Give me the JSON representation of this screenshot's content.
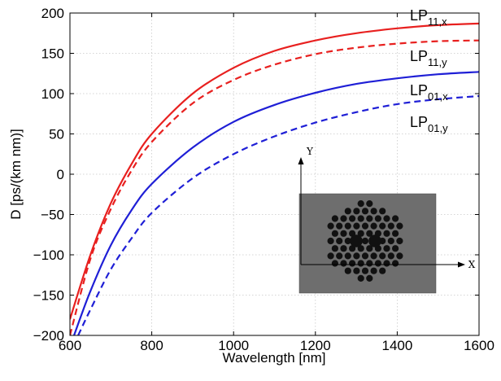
{
  "chart_data": {
    "type": "line",
    "title": "",
    "xlabel": "Wavelength [nm]",
    "ylabel": "D [ps/(km nm)]",
    "xlim": [
      600,
      1600
    ],
    "ylim": [
      -200,
      200
    ],
    "xticks": [
      "600",
      "800",
      "1000",
      "1200",
      "1400",
      "1600"
    ],
    "yticks": [
      "200",
      "150",
      "100",
      "50",
      "0",
      "−50",
      "−100",
      "−150",
      "−200"
    ],
    "grid": true,
    "series": [
      {
        "name": "LP11,x",
        "label_main": "LP",
        "label_sub": "11,x",
        "color": "#e8201f",
        "dash": "solid",
        "x": [
          600,
          650,
          700,
          750,
          800,
          900,
          1000,
          1100,
          1200,
          1300,
          1400,
          1500,
          1600
        ],
        "y": [
          -180,
          -100,
          -36,
          12,
          50,
          100,
          132,
          153,
          166,
          175,
          181,
          185,
          187
        ]
      },
      {
        "name": "LP11,y",
        "label_main": "LP",
        "label_sub": "11,y",
        "color": "#e8201f",
        "dash": "dashed",
        "x": [
          600,
          650,
          700,
          750,
          800,
          900,
          1000,
          1100,
          1200,
          1300,
          1400,
          1500,
          1600
        ],
        "y": [
          -200,
          -105,
          -43,
          4,
          40,
          88,
          117,
          136,
          149,
          157,
          162,
          165,
          166
        ]
      },
      {
        "name": "LP01,x",
        "label_main": "LP",
        "label_sub": "01,x",
        "color": "#1f1fd6",
        "dash": "solid",
        "x": [
          610,
          650,
          700,
          750,
          800,
          900,
          1000,
          1100,
          1200,
          1300,
          1400,
          1500,
          1600
        ],
        "y": [
          -200,
          -145,
          -88,
          -45,
          -12,
          33,
          65,
          86,
          101,
          112,
          119,
          124,
          127
        ]
      },
      {
        "name": "LP01,y",
        "label_main": "LP",
        "label_sub": "01,y",
        "color": "#1f1fd6",
        "dash": "dashed",
        "x": [
          620,
          650,
          700,
          750,
          800,
          900,
          1000,
          1100,
          1200,
          1300,
          1400,
          1500,
          1600
        ],
        "y": [
          -200,
          -168,
          -118,
          -80,
          -48,
          -5,
          25,
          47,
          64,
          77,
          87,
          93,
          97
        ]
      }
    ],
    "inset": {
      "x_axis_label": "X",
      "y_axis_label": "Y",
      "background": "#6e6e6e",
      "hole_color": "#111111"
    }
  }
}
